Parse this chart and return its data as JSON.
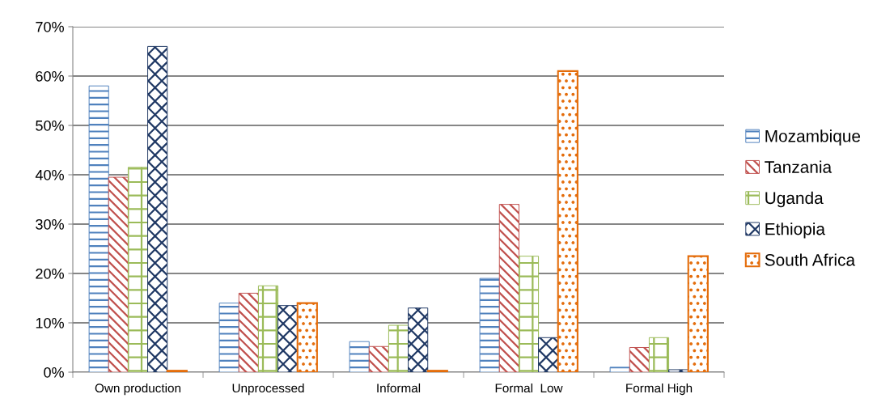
{
  "chart_data": {
    "type": "bar",
    "categories": [
      "Own production",
      "Unprocessed",
      "Informal",
      "Formal  Low",
      "Formal High"
    ],
    "series": [
      {
        "name": "Mozambique",
        "color": "#4f81bd",
        "values": [
          58,
          14,
          6.2,
          19,
          1
        ]
      },
      {
        "name": "Tanzania",
        "color": "#c0504d",
        "values": [
          39.5,
          16,
          5.2,
          34,
          5
        ]
      },
      {
        "name": "Uganda",
        "color": "#9bbb59",
        "values": [
          41.5,
          17.5,
          9.5,
          23.5,
          7
        ]
      },
      {
        "name": "Ethiopia",
        "color": "#1f3864",
        "values": [
          66,
          13.5,
          13,
          7,
          0.5
        ]
      },
      {
        "name": "South Africa",
        "color": "#e46c0a",
        "values": [
          0.3,
          14,
          0.3,
          61,
          23.5
        ]
      }
    ],
    "ylim": [
      0,
      70
    ],
    "yticks": [
      {
        "value": 0,
        "label": "0%"
      },
      {
        "value": 10,
        "label": "10%"
      },
      {
        "value": 20,
        "label": "20%"
      },
      {
        "value": 30,
        "label": "30%"
      },
      {
        "value": 40,
        "label": "40%"
      },
      {
        "value": 50,
        "label": "50%"
      },
      {
        "value": 60,
        "label": "60%"
      },
      {
        "value": 70,
        "label": "70%"
      }
    ],
    "grid": "y",
    "legend": "right"
  }
}
